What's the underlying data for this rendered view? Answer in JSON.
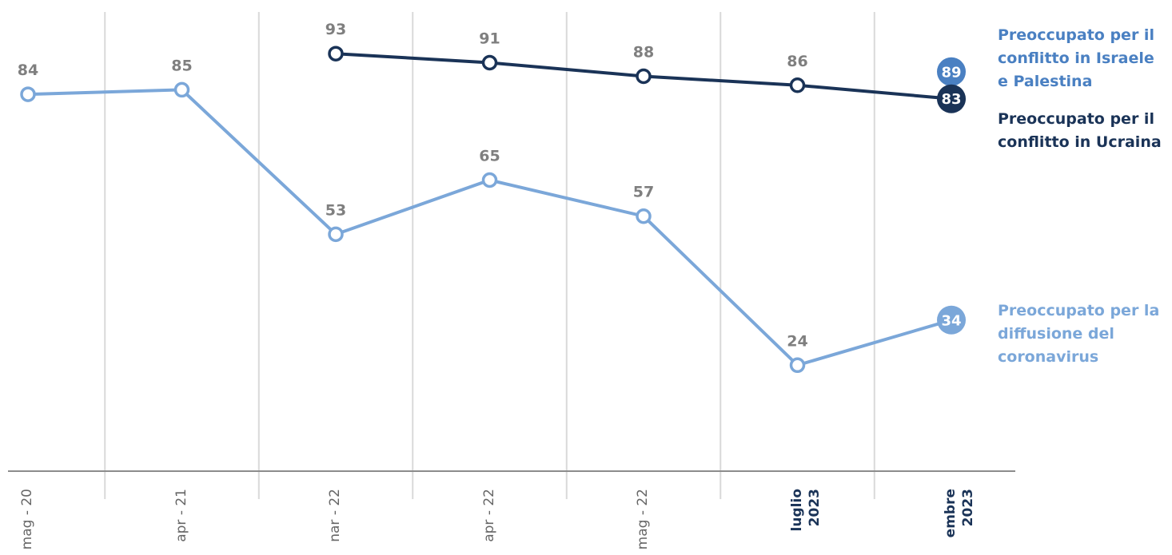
{
  "chart_data": {
    "type": "line",
    "categories": [
      "mag - 20",
      "apr - 21",
      "nar - 22",
      "apr - 22",
      "mag - 22",
      "luglio 2023",
      "embre 2023"
    ],
    "ylim": [
      0,
      104
    ],
    "series": [
      {
        "name": "Preoccupato per il conflitto in Israele e Palestina",
        "color": "#4a80c2",
        "values": [
          null,
          null,
          null,
          null,
          null,
          null,
          89
        ]
      },
      {
        "name": "Preoccupato per il conflitto in Ucraina",
        "color": "#1a3357",
        "values": [
          null,
          null,
          93,
          91,
          88,
          86,
          83
        ]
      },
      {
        "name": "Preoccupato per la diffusione del coronavirus",
        "color": "#7ba7d9",
        "values": [
          84,
          85,
          53,
          65,
          57,
          24,
          34
        ]
      }
    ]
  }
}
